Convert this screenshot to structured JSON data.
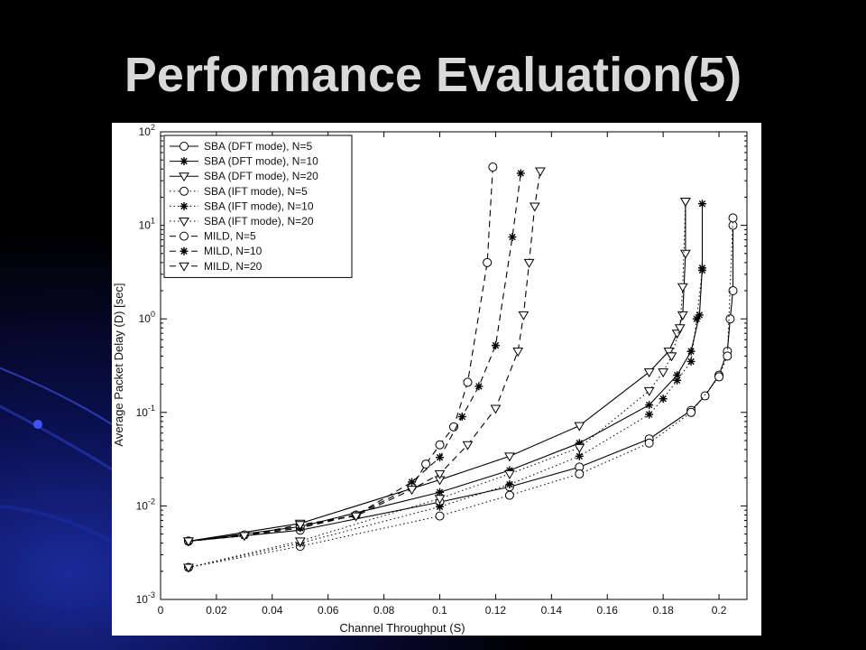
{
  "slide": {
    "title": "Performance Evaluation(5)"
  },
  "colors": {
    "background": "#000000",
    "accent_blue": "#1b2a9a",
    "title": "#d9d9d9"
  },
  "chart_data": {
    "type": "line",
    "title": "",
    "xlabel": "Channel Throughput (S)",
    "ylabel": "Average Packet Delay (D) [sec]",
    "xlim": [
      0,
      0.21
    ],
    "ylim": [
      0.001,
      100
    ],
    "yscale": "log",
    "x_ticks": [
      "0",
      "0.02",
      "0.04",
      "0.06",
      "0.08",
      "0.1",
      "0.12",
      "0.14",
      "0.16",
      "0.18",
      "0.2"
    ],
    "y_ticks": [
      "10^-3",
      "10^-2",
      "10^-1",
      "10^0",
      "10^1",
      "10^2"
    ],
    "grid": false,
    "legend_position": "top-left",
    "series": [
      {
        "name": "SBA (DFT mode), N=5",
        "line": "solid",
        "marker": "circle",
        "x": [
          0.01,
          0.05,
          0.1,
          0.125,
          0.15,
          0.175,
          0.19,
          0.195,
          0.2,
          0.203,
          0.204,
          0.205,
          0.205
        ],
        "y": [
          0.0042,
          0.0055,
          0.011,
          0.016,
          0.026,
          0.052,
          0.105,
          0.15,
          0.25,
          0.45,
          1.0,
          2.0,
          10.0
        ]
      },
      {
        "name": "SBA (DFT mode), N=10",
        "line": "solid",
        "marker": "star",
        "x": [
          0.01,
          0.05,
          0.1,
          0.125,
          0.15,
          0.175,
          0.185,
          0.19,
          0.193,
          0.194,
          0.194
        ],
        "y": [
          0.0042,
          0.006,
          0.014,
          0.024,
          0.047,
          0.12,
          0.25,
          0.45,
          1.1,
          3.5,
          17.0
        ]
      },
      {
        "name": "SBA (DFT mode), N=20",
        "line": "solid",
        "marker": "triangle-down",
        "x": [
          0.01,
          0.05,
          0.1,
          0.125,
          0.15,
          0.175,
          0.182,
          0.185,
          0.187,
          0.188,
          0.188
        ],
        "y": [
          0.0042,
          0.0065,
          0.019,
          0.034,
          0.072,
          0.27,
          0.45,
          0.7,
          1.1,
          5.0,
          18.0
        ]
      },
      {
        "name": "SBA (IFT mode), N=5",
        "line": "dotted",
        "marker": "circle",
        "x": [
          0.01,
          0.05,
          0.1,
          0.125,
          0.15,
          0.175,
          0.19,
          0.2,
          0.203,
          0.205
        ],
        "y": [
          0.0022,
          0.0037,
          0.0078,
          0.013,
          0.022,
          0.047,
          0.1,
          0.24,
          0.4,
          12.0
        ]
      },
      {
        "name": "SBA (IFT mode), N=10",
        "line": "dotted",
        "marker": "star",
        "x": [
          0.01,
          0.05,
          0.1,
          0.125,
          0.15,
          0.175,
          0.18,
          0.185,
          0.19,
          0.192,
          0.194
        ],
        "y": [
          0.0022,
          0.004,
          0.0098,
          0.017,
          0.034,
          0.095,
          0.14,
          0.22,
          0.35,
          1.0,
          3.3
        ]
      },
      {
        "name": "SBA (IFT mode), N=20",
        "line": "dotted",
        "marker": "triangle-down",
        "x": [
          0.01,
          0.05,
          0.1,
          0.125,
          0.15,
          0.175,
          0.18,
          0.183,
          0.186,
          0.187,
          0.188
        ],
        "y": [
          0.0022,
          0.0042,
          0.012,
          0.022,
          0.042,
          0.17,
          0.27,
          0.4,
          0.8,
          2.2,
          18.0
        ]
      },
      {
        "name": "MILD, N=5",
        "line": "dashed",
        "marker": "circle",
        "x": [
          0.01,
          0.03,
          0.05,
          0.07,
          0.09,
          0.095,
          0.1,
          0.105,
          0.11,
          0.117,
          0.119
        ],
        "y": [
          0.0042,
          0.0049,
          0.006,
          0.008,
          0.016,
          0.028,
          0.045,
          0.07,
          0.21,
          4.0,
          42.0
        ]
      },
      {
        "name": "MILD, N=10",
        "line": "dashed",
        "marker": "star",
        "x": [
          0.01,
          0.03,
          0.05,
          0.07,
          0.09,
          0.1,
          0.108,
          0.114,
          0.12,
          0.126,
          0.129
        ],
        "y": [
          0.0042,
          0.0048,
          0.0058,
          0.008,
          0.018,
          0.033,
          0.09,
          0.19,
          0.52,
          7.5,
          36.0
        ]
      },
      {
        "name": "MILD, N=20",
        "line": "dashed",
        "marker": "triangle-down",
        "x": [
          0.01,
          0.03,
          0.05,
          0.07,
          0.09,
          0.1,
          0.11,
          0.12,
          0.128,
          0.13,
          0.132,
          0.134,
          0.136
        ],
        "y": [
          0.0042,
          0.0048,
          0.0063,
          0.0078,
          0.015,
          0.022,
          0.045,
          0.11,
          0.45,
          1.1,
          4.0,
          16.0,
          38.0
        ]
      }
    ]
  }
}
